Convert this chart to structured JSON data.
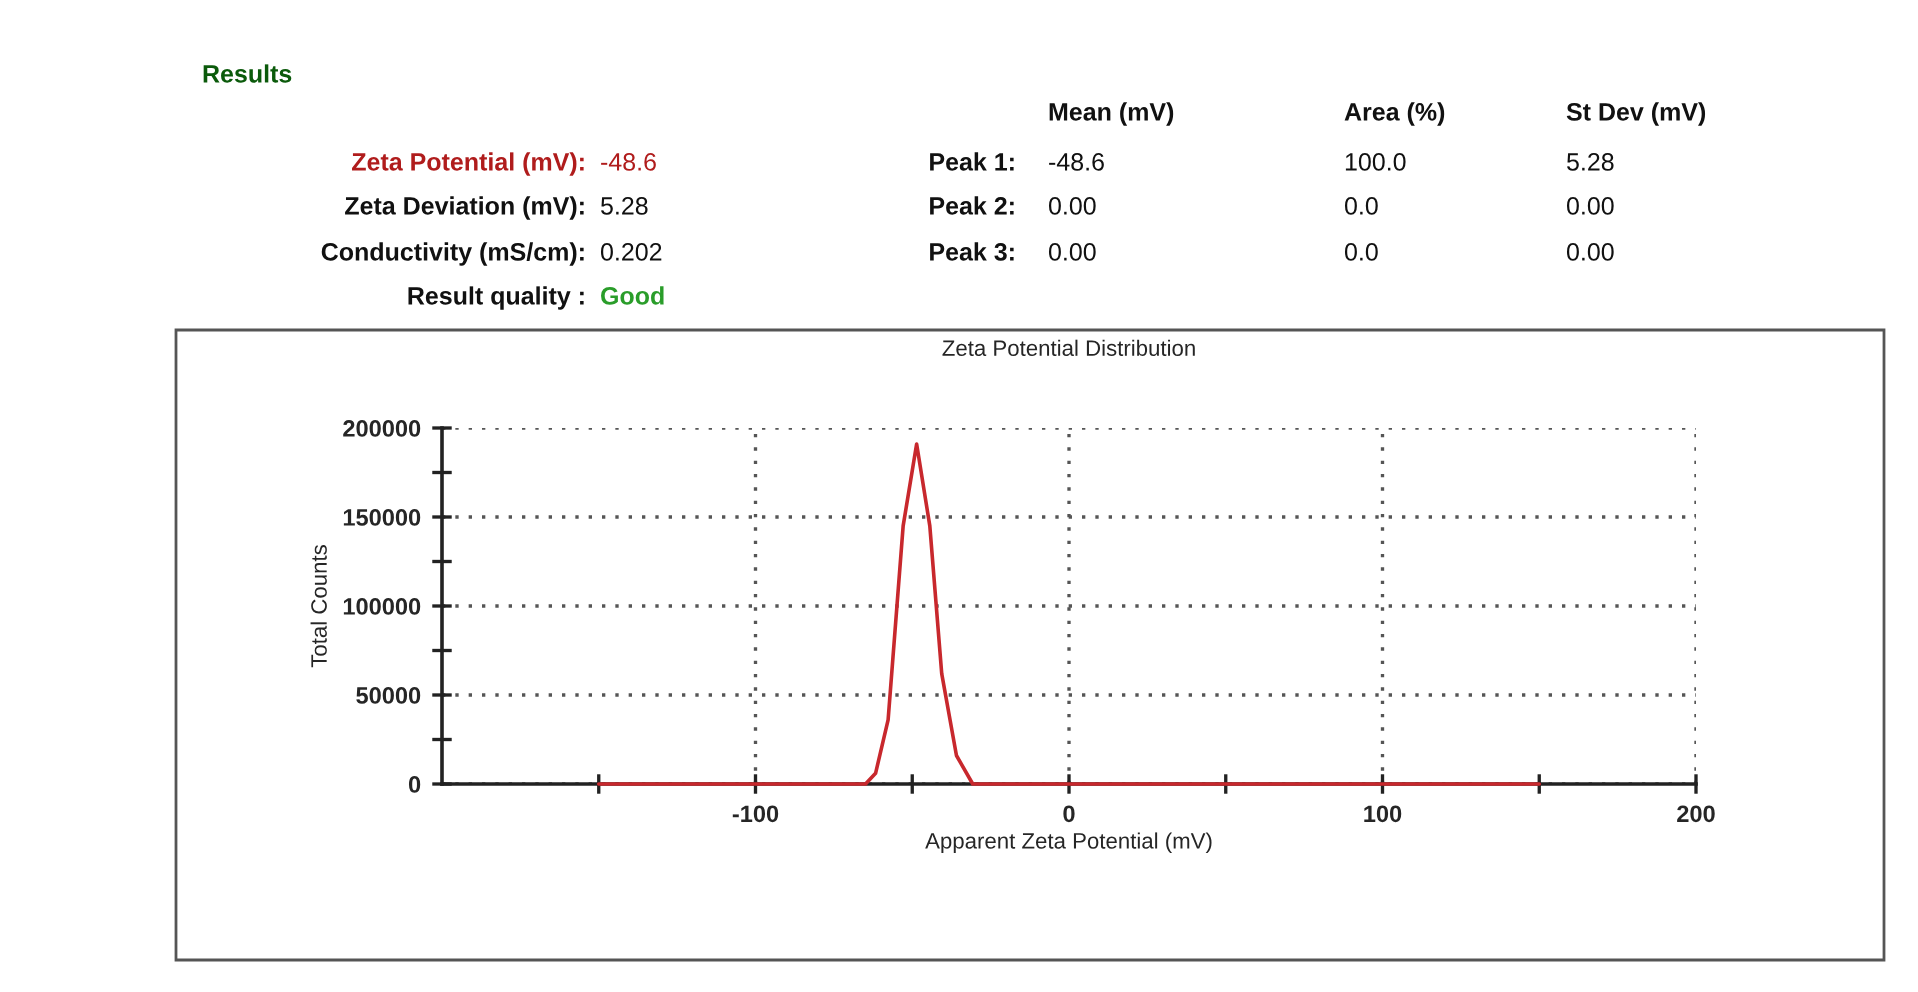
{
  "chart_data": {
    "type": "line",
    "title": "Zeta Potential Distribution",
    "xlabel": "Apparent Zeta Potential (mV)",
    "ylabel": "Total Counts",
    "x": [
      -150,
      -64.9,
      -61.7,
      -57.7,
      -52.9,
      -48.6,
      -44.4,
      -40.6,
      -35.9,
      -30.7,
      150
    ],
    "series": [
      {
        "color": "#c8282d",
        "values": [
          0,
          0,
          6000,
          36000,
          145000,
          191000,
          145000,
          62000,
          16000,
          0,
          0
        ]
      }
    ],
    "xlim": [
      -200,
      200
    ],
    "xticks": [
      {
        "value": -150,
        "label": null
      },
      -100,
      {
        "value": -50,
        "label": null
      },
      0,
      {
        "value": 50,
        "label": null
      },
      100,
      {
        "value": 150,
        "label": null
      },
      200
    ],
    "ylim": [
      0,
      200000
    ],
    "yticks": [
      0,
      {
        "value": 25000,
        "label": null
      },
      50000,
      {
        "value": 75000,
        "label": null
      },
      100000,
      {
        "value": 125000,
        "label": null
      },
      150000,
      {
        "value": 175000,
        "label": null
      },
      200000
    ],
    "grid": true,
    "line_style": "solid",
    "marker": "none",
    "annotations": [
      "Results",
      "Mean (mV)",
      "Area (%)",
      "St Dev (mV)",
      "Zeta Potential (mV):",
      "-48.6",
      "Peak 1:",
      "-48.6",
      "100.0",
      "5.28",
      "Zeta Deviation (mV):",
      "5.28",
      "Peak 2:",
      "0.00",
      "0.0",
      "0.00",
      "Conductivity (mS/cm):",
      "0.202",
      "Peak 3:",
      "0.00",
      "0.0",
      "0.00",
      "Result quality :",
      "Good"
    ]
  }
}
